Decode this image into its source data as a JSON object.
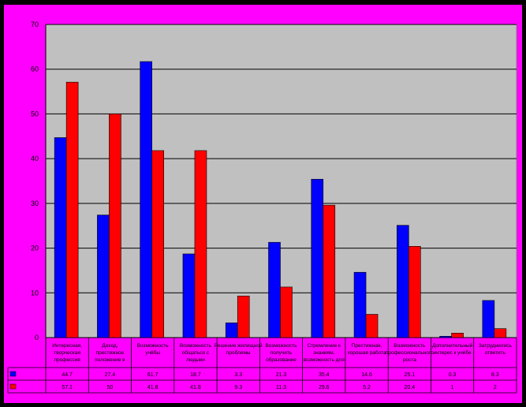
{
  "chart_data": {
    "type": "bar",
    "title": "",
    "xlabel": "",
    "ylabel": "",
    "ylim": [
      0,
      70
    ],
    "yticks": [
      0,
      10,
      20,
      30,
      40,
      50,
      60,
      70
    ],
    "grid": true,
    "legend": "none",
    "categories": [
      "Интересная, творческая профессия",
      "Доход, престижное положение в обществе",
      "Возможность учёбы",
      "Возможность общаться с людьми",
      "Решение жилищной проблемы",
      "Возможность получить образование",
      "Стремление к знаниям, возможность для самореализации",
      "Престижная, хорошая работа",
      "Возможность профессионального роста",
      "Дополнительный интерес к учёбе",
      "Затруднились ответить"
    ],
    "series": [
      {
        "name": "",
        "color": "#0000ff",
        "values": [
          44.7,
          27.4,
          61.7,
          18.7,
          3.3,
          21.3,
          35.4,
          14.6,
          25.1,
          0.3,
          8.3
        ]
      },
      {
        "name": "",
        "color": "#ff0000",
        "values": [
          57.1,
          50.0,
          41.8,
          41.8,
          9.3,
          11.3,
          29.6,
          5.2,
          20.4,
          1.0,
          2.0
        ]
      }
    ]
  }
}
